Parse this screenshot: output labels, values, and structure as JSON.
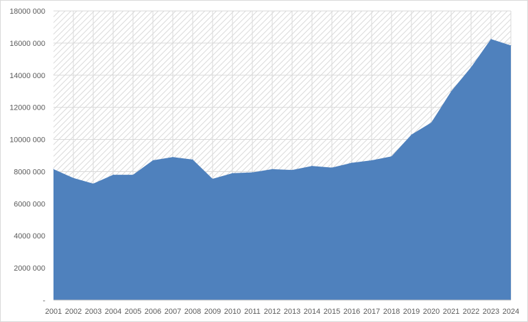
{
  "chart_data": {
    "type": "area",
    "title": "",
    "xlabel": "",
    "ylabel": "",
    "categories": [
      "2001",
      "2002",
      "2003",
      "2004",
      "2005",
      "2006",
      "2007",
      "2008",
      "2009",
      "2010",
      "2011",
      "2012",
      "2013",
      "2014",
      "2015",
      "2016",
      "2017",
      "2018",
      "2019",
      "2020",
      "2021",
      "2022",
      "2023",
      "2024"
    ],
    "series": [
      {
        "values": [
          8150000,
          7600000,
          7250000,
          7800000,
          7800000,
          8700000,
          8900000,
          8750000,
          7550000,
          7900000,
          7950000,
          8150000,
          8100000,
          8350000,
          8250000,
          8550000,
          8700000,
          8950000,
          10300000,
          11050000,
          13000000,
          14500000,
          16250000,
          15850000
        ]
      }
    ],
    "ylim": [
      0,
      18000000
    ],
    "y_ticks": [
      0,
      2000000,
      4000000,
      6000000,
      8000000,
      10000000,
      12000000,
      14000000,
      16000000,
      18000000
    ],
    "y_tick_labels": [
      "-",
      "2000 000",
      "4000 000",
      "6000 000",
      "8000 000",
      "10000 000",
      "12000 000",
      "14000 000",
      "16000 000",
      "18000 000"
    ],
    "grid": true,
    "legend": "none",
    "colors": {
      "area": "#4f81bd",
      "plot_background": "#f2f2f2",
      "hatch": "#d9d9d9",
      "gridline": "#d9d9d9",
      "axis": "#bfbfbf",
      "label": "#595959"
    }
  }
}
